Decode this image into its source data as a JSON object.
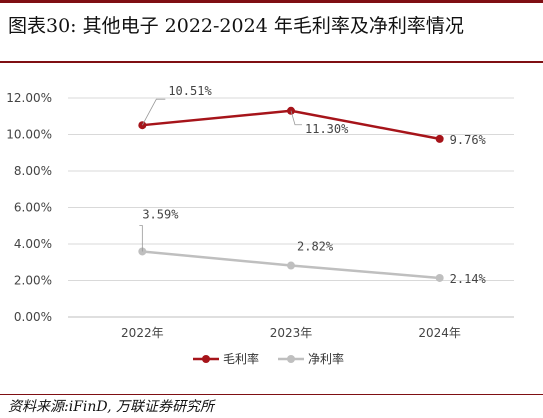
{
  "title": "图表30:  其他电子 2022-2024 年毛利率及净利率情况",
  "source": "资料来源:iFinD, 万联证券研究所",
  "colors": {
    "accent": "#7f0f13",
    "gross": "#a6141a",
    "net": "#bfbfbf",
    "grid": "#d9d9d9"
  },
  "chart_data": {
    "type": "line",
    "categories": [
      "2022年",
      "2023年",
      "2024年"
    ],
    "ylim": [
      0,
      12
    ],
    "yticks": [
      "0.00%",
      "2.00%",
      "4.00%",
      "6.00%",
      "8.00%",
      "10.00%",
      "12.00%"
    ],
    "grid": true,
    "legend_position": "bottom",
    "series": [
      {
        "name": "毛利率",
        "values": [
          10.51,
          11.3,
          9.76
        ],
        "labels": [
          "10.51%",
          "11.30%",
          "9.76%"
        ]
      },
      {
        "name": "净利率",
        "values": [
          3.59,
          2.82,
          2.14
        ],
        "labels": [
          "3.59%",
          "2.82%",
          "2.14%"
        ]
      }
    ]
  }
}
